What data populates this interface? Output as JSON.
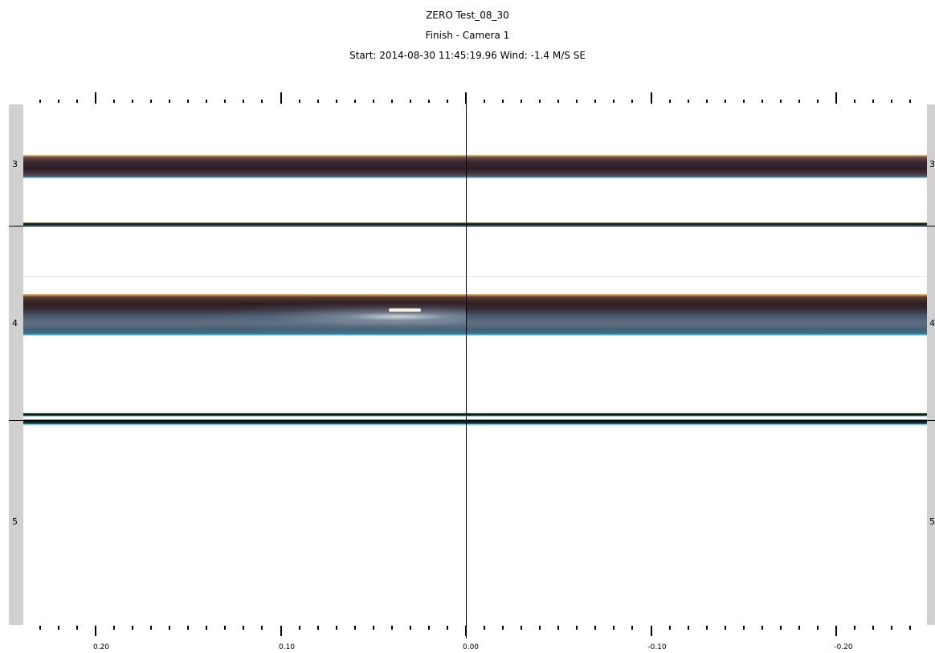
{
  "header": {
    "title": "ZERO Test_08_30",
    "subtitle": "Finish - Camera 1",
    "start_label": "Start:",
    "start_value": "2014-08-30 11:45:19.96",
    "wind_label": "Wind:",
    "wind_value": "-1.4 M/S SE"
  },
  "lanes": {
    "left": [
      "3",
      "4",
      "5"
    ],
    "right": [
      "3",
      "4",
      "5"
    ]
  },
  "time_axis": {
    "labels": [
      "0.20",
      "0.10",
      "0.00",
      "-0.10",
      "-0.20"
    ]
  },
  "colors": {
    "background": "#ffffff",
    "sidebar": "#d0d0d0",
    "finish_line": "#000000",
    "lane_edge_top": "#f2c16a",
    "lane_edge_bottom": "#2fc0d0"
  }
}
